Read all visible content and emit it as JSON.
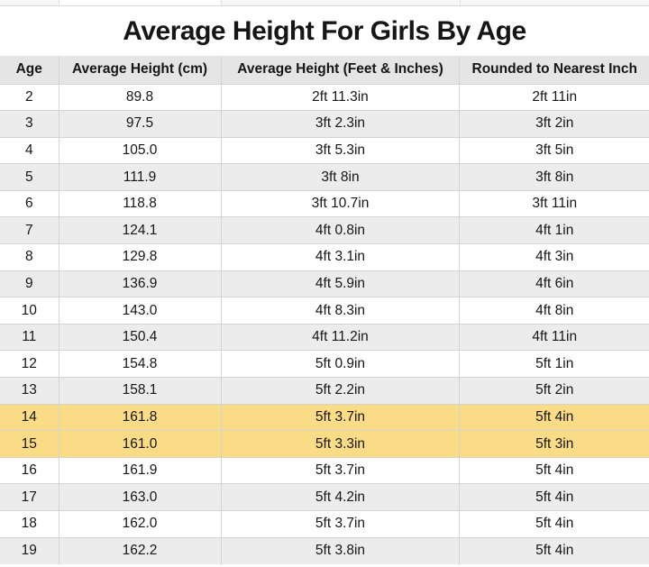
{
  "chart_data": {
    "type": "table",
    "title": "Average Height For Girls By Age",
    "columns": [
      "Age",
      "Average Height (cm)",
      "Average Height (Feet & Inches)",
      "Rounded to Nearest Inch"
    ],
    "rows": [
      {
        "age": "2",
        "cm": "89.8",
        "ftin": "2ft 11.3in",
        "rounded": "2ft 11in",
        "highlight": false
      },
      {
        "age": "3",
        "cm": "97.5",
        "ftin": "3ft 2.3in",
        "rounded": "3ft 2in",
        "highlight": false
      },
      {
        "age": "4",
        "cm": "105.0",
        "ftin": "3ft 5.3in",
        "rounded": "3ft 5in",
        "highlight": false
      },
      {
        "age": "5",
        "cm": "111.9",
        "ftin": "3ft 8in",
        "rounded": "3ft 8in",
        "highlight": false
      },
      {
        "age": "6",
        "cm": "118.8",
        "ftin": "3ft 10.7in",
        "rounded": "3ft 11in",
        "highlight": false
      },
      {
        "age": "7",
        "cm": "124.1",
        "ftin": "4ft 0.8in",
        "rounded": "4ft 1in",
        "highlight": false
      },
      {
        "age": "8",
        "cm": "129.8",
        "ftin": "4ft 3.1in",
        "rounded": "4ft 3in",
        "highlight": false
      },
      {
        "age": "9",
        "cm": "136.9",
        "ftin": "4ft 5.9in",
        "rounded": "4ft 6in",
        "highlight": false
      },
      {
        "age": "10",
        "cm": "143.0",
        "ftin": "4ft 8.3in",
        "rounded": "4ft 8in",
        "highlight": false
      },
      {
        "age": "11",
        "cm": "150.4",
        "ftin": "4ft 11.2in",
        "rounded": "4ft 11in",
        "highlight": false
      },
      {
        "age": "12",
        "cm": "154.8",
        "ftin": "5ft 0.9in",
        "rounded": "5ft 1in",
        "highlight": false
      },
      {
        "age": "13",
        "cm": "158.1",
        "ftin": "5ft 2.2in",
        "rounded": "5ft 2in",
        "highlight": false
      },
      {
        "age": "14",
        "cm": "161.8",
        "ftin": "5ft 3.7in",
        "rounded": "5ft 4in",
        "highlight": true
      },
      {
        "age": "15",
        "cm": "161.0",
        "ftin": "5ft 3.3in",
        "rounded": "5ft 3in",
        "highlight": true
      },
      {
        "age": "16",
        "cm": "161.9",
        "ftin": "5ft 3.7in",
        "rounded": "5ft 4in",
        "highlight": false
      },
      {
        "age": "17",
        "cm": "163.0",
        "ftin": "5ft 4.2in",
        "rounded": "5ft 4in",
        "highlight": false
      },
      {
        "age": "18",
        "cm": "162.0",
        "ftin": "5ft 3.7in",
        "rounded": "5ft 4in",
        "highlight": false
      },
      {
        "age": "19",
        "cm": "162.2",
        "ftin": "5ft 3.8in",
        "rounded": "5ft 4in",
        "highlight": false
      }
    ],
    "layout": {
      "grid": true,
      "row_striping": "alternating white / light gray",
      "highlight_note": "ages 14 and 15 highlighted yellow"
    }
  },
  "colors": {
    "highlight_row": "#fadc87",
    "stripe_row": "#ececec",
    "header_bg": "#e5e5e5",
    "grid_border": "#d4d4d4",
    "text": "#161616"
  }
}
